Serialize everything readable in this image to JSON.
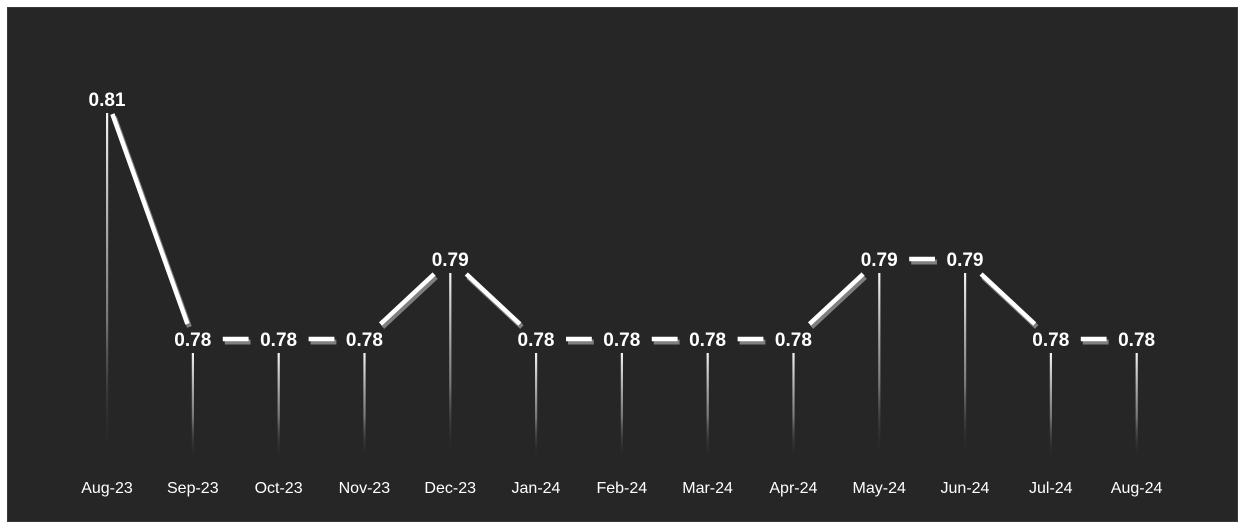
{
  "chart_data": {
    "type": "line",
    "title": "",
    "xlabel": "",
    "ylabel": "",
    "categories": [
      "Aug-23",
      "Sep-23",
      "Oct-23",
      "Nov-23",
      "Dec-23",
      "Jan-24",
      "Feb-24",
      "Mar-24",
      "Apr-24",
      "May-24",
      "Jun-24",
      "Jul-24",
      "Aug-24"
    ],
    "values": [
      0.81,
      0.78,
      0.78,
      0.78,
      0.79,
      0.78,
      0.78,
      0.78,
      0.78,
      0.79,
      0.79,
      0.78,
      0.78
    ],
    "data_labels": [
      "0.81",
      "0.78",
      "0.78",
      "0.78",
      "0.79",
      "0.78",
      "0.78",
      "0.78",
      "0.78",
      "0.79",
      "0.79",
      "0.78",
      "0.78"
    ],
    "grid": false,
    "legend": "none",
    "drop_lines": true,
    "colors": {
      "background": "#262626",
      "line": "#ffffff",
      "shadow": "#7f7f7f",
      "text": "#ffffff"
    }
  }
}
